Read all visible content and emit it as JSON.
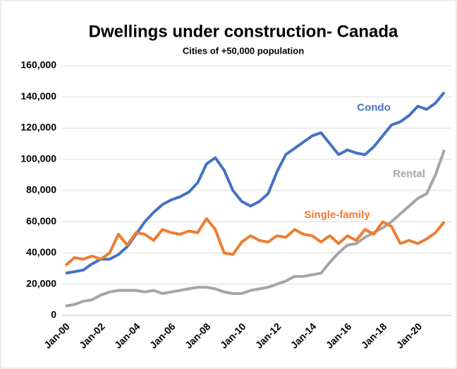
{
  "chart_data": {
    "type": "line",
    "title": "Dwellings under construction- Canada",
    "subtitle": "Cities of +50,000 population",
    "categories": [
      "Jan-00",
      null,
      null,
      null,
      "Jan-02",
      null,
      null,
      null,
      "Jan-04",
      null,
      null,
      null,
      "Jan-06",
      null,
      null,
      null,
      "Jan-08",
      null,
      null,
      null,
      "Jan-10",
      null,
      null,
      null,
      "Jan-12",
      null,
      null,
      null,
      "Jan-14",
      null,
      null,
      null,
      "Jan-16",
      null,
      null,
      null,
      "Jan-18",
      null,
      null,
      null,
      "Jan-20",
      null,
      null,
      null
    ],
    "series": [
      {
        "name": "Condo",
        "color": "#4472c4",
        "values": [
          27000,
          28000,
          29000,
          33000,
          36000,
          36000,
          39000,
          44000,
          52000,
          60000,
          66000,
          71000,
          74000,
          76000,
          79000,
          85000,
          97000,
          101000,
          93000,
          80000,
          73000,
          70000,
          73000,
          78000,
          92000,
          103000,
          107000,
          111000,
          115000,
          117000,
          110000,
          103000,
          106000,
          104000,
          103000,
          108000,
          115000,
          122000,
          124000,
          128000,
          134000,
          132000,
          136000,
          143000
        ]
      },
      {
        "name": "Rental",
        "color": "#a5a5a5",
        "values": [
          6000,
          7000,
          9000,
          10000,
          13000,
          15000,
          16000,
          16000,
          16000,
          15000,
          16000,
          14000,
          15000,
          16000,
          17000,
          18000,
          18000,
          17000,
          15000,
          14000,
          14000,
          16000,
          17000,
          18000,
          20000,
          22000,
          25000,
          25000,
          26000,
          27000,
          34000,
          40000,
          45000,
          46000,
          50000,
          53000,
          56000,
          60000,
          65000,
          70000,
          75000,
          78000,
          90000,
          106000
        ]
      },
      {
        "name": "Single-family",
        "color": "#ed7d31",
        "values": [
          32000,
          37000,
          36000,
          38000,
          36000,
          40000,
          52000,
          45000,
          53000,
          52000,
          48000,
          55000,
          53000,
          52000,
          54000,
          53000,
          62000,
          55000,
          40000,
          39000,
          47000,
          51000,
          48000,
          47000,
          51000,
          50000,
          55000,
          52000,
          51000,
          47000,
          51000,
          46000,
          51000,
          48000,
          55000,
          52000,
          60000,
          57000,
          46000,
          48000,
          46000,
          49000,
          53000,
          60000
        ]
      }
    ],
    "ylim": [
      0,
      160000
    ],
    "yticks": [
      0,
      {
        "value": 20000,
        "label": "20,000"
      },
      {
        "value": 40000,
        "label": "40,000"
      },
      {
        "value": 60000,
        "label": "60,000"
      },
      {
        "value": 80000,
        "label": "80,000"
      },
      {
        "value": 100000,
        "label": "100,000"
      },
      {
        "value": 120000,
        "label": "120,000"
      },
      {
        "value": 140000,
        "label": "140,000"
      },
      {
        "value": 160000,
        "label": "160,000"
      }
    ],
    "grid": true
  }
}
